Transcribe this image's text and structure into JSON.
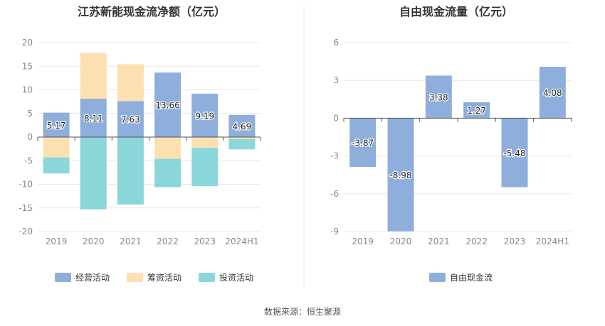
{
  "chart_data": [
    {
      "type": "bar",
      "stacked": true,
      "title": "江苏新能现金流净额（亿元）",
      "categories": [
        "2019",
        "2020",
        "2021",
        "2022",
        "2023",
        "2024H1"
      ],
      "ylim": [
        -20,
        20
      ],
      "yticks": [
        20,
        15,
        10,
        5,
        0,
        -5,
        -10,
        -15,
        -20
      ],
      "grid": true,
      "legend_position": "bottom",
      "series": [
        {
          "name": "经营活动",
          "color": "#8eafdc",
          "values": [
            5.17,
            8.11,
            7.63,
            13.66,
            9.19,
            4.69
          ],
          "labels": [
            "5.17",
            "8.11",
            "7.63",
            "13.66",
            "9.19",
            "4.69"
          ]
        },
        {
          "name": "筹资活动",
          "color": "#fde0b0",
          "values": [
            -4.3,
            9.7,
            7.8,
            -4.6,
            -2.3,
            -0.4
          ]
        },
        {
          "name": "投资活动",
          "color": "#8ad7da",
          "values": [
            -3.4,
            -15.3,
            -14.3,
            -6.0,
            -8.1,
            -2.2
          ]
        }
      ]
    },
    {
      "type": "bar",
      "title": "自由现金流量（亿元）",
      "categories": [
        "2019",
        "2020",
        "2021",
        "2022",
        "2023",
        "2024H1"
      ],
      "ylim": [
        -9,
        6
      ],
      "yticks": [
        6,
        3,
        0,
        -3,
        -6,
        -9
      ],
      "grid": true,
      "legend_position": "bottom",
      "series": [
        {
          "name": "自由现金流",
          "color": "#8eafdc",
          "values": [
            -3.87,
            -8.98,
            3.38,
            1.27,
            -5.48,
            4.08
          ],
          "labels": [
            "-3.87",
            "-8.98",
            "3.38",
            "1.27",
            "-5.48",
            "4.08"
          ]
        }
      ]
    }
  ],
  "footer": {
    "source": "数据来源：恒生聚源"
  }
}
